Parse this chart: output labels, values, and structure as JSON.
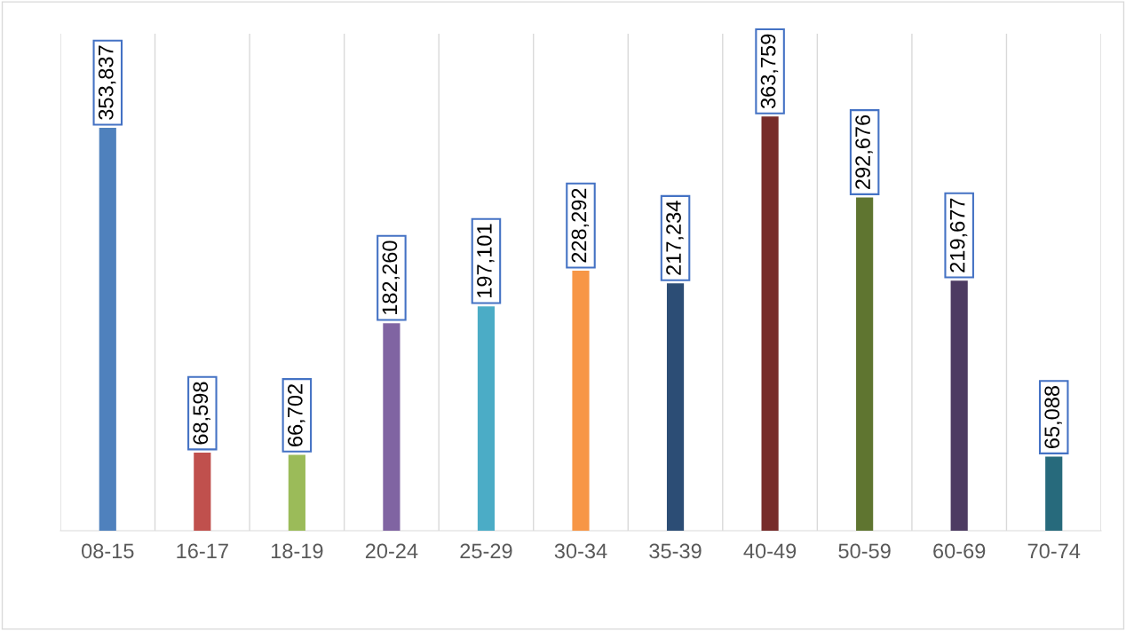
{
  "chart_data": {
    "type": "bar",
    "categories": [
      "08-15",
      "16-17",
      "18-19",
      "20-24",
      "25-29",
      "30-34",
      "35-39",
      "40-49",
      "50-59",
      "60-69",
      "70-74"
    ],
    "values": [
      353837,
      68598,
      66702,
      182260,
      197101,
      228292,
      217234,
      363759,
      292676,
      219677,
      65088
    ],
    "value_labels": [
      "353,837",
      "68,598",
      "66,702",
      "182,260",
      "197,101",
      "228,292",
      "217,234",
      "363,759",
      "292,676",
      "219,677",
      "65,088"
    ],
    "colors": [
      "#4f81bd",
      "#c0504d",
      "#9bbb59",
      "#8064a2",
      "#4bacc6",
      "#f79646",
      "#2c4d75",
      "#772c2a",
      "#5f7530",
      "#4d3b62",
      "#276a7c"
    ],
    "grid": "x",
    "legend": false
  }
}
